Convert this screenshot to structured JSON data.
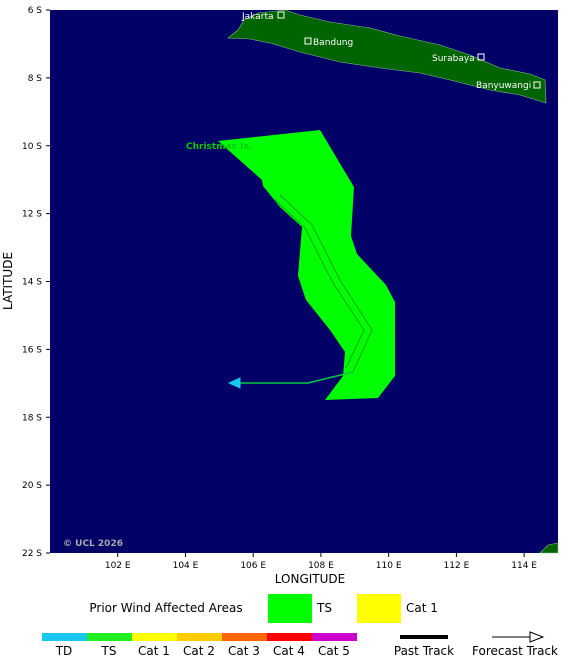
{
  "map": {
    "xlim": [
      100,
      115
    ],
    "ylim": [
      6,
      22
    ],
    "xticks": [
      {
        "value": 102,
        "label": "102 E"
      },
      {
        "value": 104,
        "label": "104 E"
      },
      {
        "value": 106,
        "label": "106 E"
      },
      {
        "value": 108,
        "label": "108 E"
      },
      {
        "value": 110,
        "label": "110 E"
      },
      {
        "value": 112,
        "label": "112 E"
      },
      {
        "value": 114,
        "label": "114 E"
      }
    ],
    "yticks": [
      {
        "value": 6,
        "label": "6 S"
      },
      {
        "value": 8,
        "label": "8 S"
      },
      {
        "value": 10,
        "label": "10 S"
      },
      {
        "value": 12,
        "label": "12 S"
      },
      {
        "value": 14,
        "label": "14 S"
      },
      {
        "value": 16,
        "label": "16 S"
      },
      {
        "value": 18,
        "label": "18 S"
      },
      {
        "value": 20,
        "label": "20 S"
      },
      {
        "value": 22,
        "label": "22 S"
      }
    ],
    "xlabel": "LONGITUDE",
    "ylabel": "LATITUDE",
    "cities": [
      "Jakarta",
      "Bandung",
      "Surabaya",
      "Banyuwangi"
    ],
    "island": "Christmas Is.",
    "credit": "© UCL 2026"
  },
  "legend": {
    "title": "Prior Wind Affected Areas",
    "areas": [
      {
        "name": "TS",
        "color": "#00ff00"
      },
      {
        "name": "Cat 1",
        "color": "#ffff00"
      }
    ],
    "scale": [
      {
        "name": "TD",
        "color": "#18c8f0"
      },
      {
        "name": "TS",
        "color": "#22ee22"
      },
      {
        "name": "Cat 1",
        "color": "#ffff00"
      },
      {
        "name": "Cat 2",
        "color": "#ffcc00"
      },
      {
        "name": "Cat 3",
        "color": "#ff6600"
      },
      {
        "name": "Cat 4",
        "color": "#ff0000"
      },
      {
        "name": "Cat 5",
        "color": "#cc00cc"
      }
    ],
    "past": "Past Track",
    "forecast": "Forecast Track"
  }
}
